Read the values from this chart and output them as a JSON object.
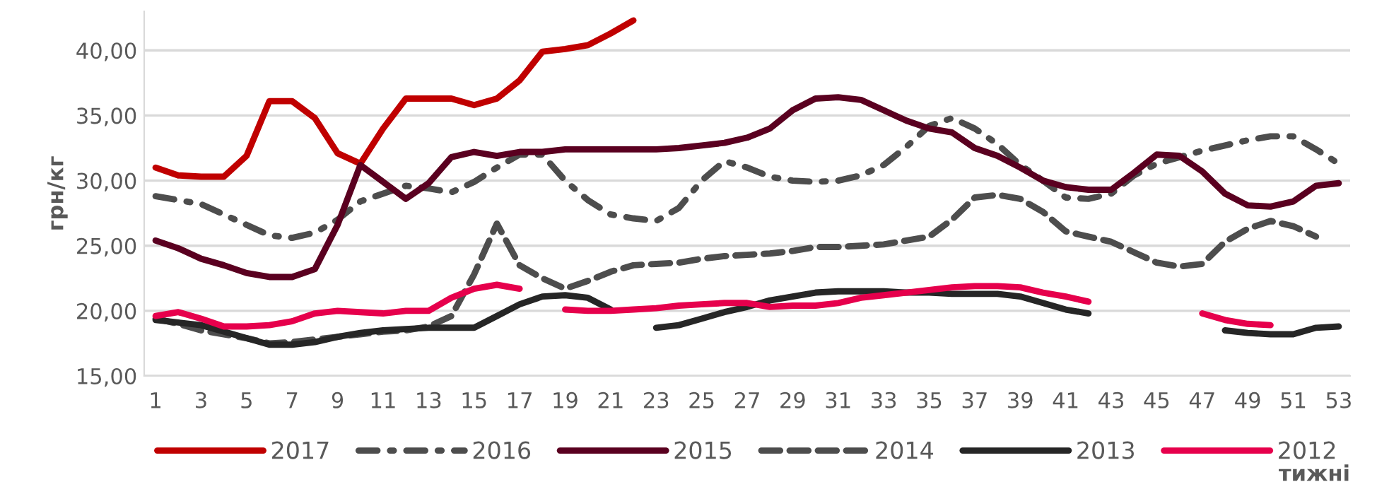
{
  "chart_data": {
    "type": "line",
    "ylabel": "грн/кг",
    "xlabel": "тижні",
    "categories": [
      "1",
      null,
      "3",
      null,
      "5",
      null,
      "7",
      null,
      "9",
      null,
      "11",
      null,
      "13",
      null,
      "15",
      null,
      "17",
      null,
      "19",
      null,
      "21",
      null,
      "23",
      null,
      "25",
      null,
      "27",
      null,
      "29",
      null,
      "31",
      null,
      "33",
      null,
      "35",
      null,
      "37",
      null,
      "39",
      null,
      "41",
      null,
      "43",
      null,
      "45",
      null,
      "47",
      null,
      "49",
      null,
      "51",
      null,
      "53"
    ],
    "ylim": [
      15,
      43
    ],
    "yticks": [
      {
        "value": 15,
        "label": "15,00"
      },
      {
        "value": 20,
        "label": "20,00"
      },
      {
        "value": 25,
        "label": "25,00"
      },
      {
        "value": 30,
        "label": "30,00"
      },
      {
        "value": 35,
        "label": "35,00"
      },
      {
        "value": 40,
        "label": "40,00"
      }
    ],
    "grid": "y",
    "legend": "bottom",
    "series": [
      {
        "name": "2017",
        "color": "#c00000",
        "line_style": "solid",
        "values": [
          31.0,
          30.4,
          30.3,
          30.3,
          31.9,
          36.1,
          36.1,
          34.8,
          32.1,
          31.3,
          34.0,
          36.3,
          36.3,
          36.3,
          35.8,
          36.3,
          37.7,
          39.9,
          40.1,
          40.4,
          41.3,
          42.3,
          null,
          null,
          null,
          null,
          null,
          null,
          null,
          null,
          null,
          null,
          null,
          null,
          null,
          null,
          null,
          null,
          null,
          null,
          null,
          null,
          null,
          null,
          null,
          null,
          null,
          null,
          null,
          null,
          null,
          null,
          null
        ]
      },
      {
        "name": "2016",
        "color": "#4d4d4d",
        "line_style": "dashdot",
        "values": [
          28.8,
          28.5,
          28.2,
          27.4,
          26.6,
          25.8,
          25.6,
          26.0,
          27.0,
          28.4,
          29.0,
          29.6,
          29.4,
          29.1,
          29.9,
          31.0,
          32.0,
          32.0,
          30.0,
          28.5,
          27.4,
          27.1,
          26.9,
          27.9,
          30.0,
          31.5,
          31.0,
          30.3,
          30.0,
          29.9,
          30.0,
          30.4,
          31.2,
          32.6,
          34.2,
          34.8,
          34.0,
          32.8,
          31.2,
          30.0,
          28.7,
          28.6,
          29.0,
          30.4,
          31.3,
          31.8,
          32.3,
          32.7,
          33.1,
          33.4,
          33.4,
          32.4,
          31.3
        ]
      },
      {
        "name": "2015",
        "color": "#5a0020",
        "line_style": "solid",
        "values": [
          25.4,
          24.8,
          24.0,
          23.5,
          22.9,
          22.6,
          22.6,
          23.2,
          26.6,
          31.2,
          29.9,
          28.6,
          29.8,
          31.8,
          32.2,
          31.9,
          32.2,
          32.2,
          32.4,
          32.4,
          32.4,
          32.4,
          32.4,
          32.5,
          32.7,
          32.9,
          33.3,
          34.0,
          35.4,
          36.3,
          36.4,
          36.2,
          35.4,
          34.6,
          34.0,
          33.7,
          32.5,
          31.9,
          31.0,
          30.0,
          29.5,
          29.3,
          29.3,
          30.6,
          32.0,
          31.9,
          30.7,
          29.0,
          28.1,
          28.0,
          28.4,
          29.6,
          29.8
        ]
      },
      {
        "name": "2014",
        "color": "#4d4d4d",
        "line_style": "dashed",
        "values": [
          19.4,
          19.0,
          18.5,
          18.2,
          17.9,
          17.5,
          17.6,
          17.8,
          18.0,
          18.2,
          18.4,
          18.5,
          18.8,
          19.6,
          22.8,
          26.7,
          23.5,
          22.5,
          21.7,
          22.3,
          23.0,
          23.5,
          23.6,
          23.7,
          24.0,
          24.2,
          24.3,
          24.4,
          24.6,
          24.9,
          24.9,
          25.0,
          25.1,
          25.4,
          25.7,
          27.0,
          28.7,
          28.9,
          28.6,
          27.6,
          26.1,
          25.7,
          25.3,
          24.5,
          23.7,
          23.4,
          23.6,
          25.3,
          26.3,
          26.9,
          26.5,
          25.7,
          null
        ]
      },
      {
        "name": "2013",
        "color": "#262626",
        "line_style": "solid",
        "values": [
          19.3,
          19.1,
          18.9,
          18.4,
          17.9,
          17.4,
          17.4,
          17.6,
          18.0,
          18.3,
          18.5,
          18.6,
          18.7,
          18.7,
          18.7,
          19.6,
          20.5,
          21.1,
          21.2,
          21.0,
          20.1,
          null,
          18.7,
          18.9,
          19.4,
          19.9,
          20.3,
          20.8,
          21.1,
          21.4,
          21.5,
          21.5,
          21.5,
          21.4,
          21.4,
          21.3,
          21.3,
          21.3,
          21.1,
          20.6,
          20.1,
          19.8,
          null,
          null,
          null,
          null,
          null,
          18.5,
          18.3,
          18.2,
          18.2,
          18.7,
          18.8
        ]
      },
      {
        "name": "2012",
        "color": "#e6004c",
        "line_style": "solid",
        "values": [
          19.6,
          19.9,
          19.4,
          18.8,
          18.8,
          18.9,
          19.2,
          19.8,
          20.0,
          19.9,
          19.8,
          20.0,
          20.0,
          21.0,
          21.7,
          22.0,
          21.7,
          null,
          20.1,
          20.0,
          20.0,
          20.1,
          20.2,
          20.4,
          20.5,
          20.6,
          20.6,
          20.3,
          20.4,
          20.4,
          20.6,
          21.0,
          21.2,
          21.4,
          21.6,
          21.8,
          21.9,
          21.9,
          21.8,
          21.4,
          21.1,
          20.7,
          null,
          null,
          null,
          null,
          19.8,
          19.3,
          19.0,
          18.9,
          null,
          null,
          null
        ]
      }
    ]
  }
}
